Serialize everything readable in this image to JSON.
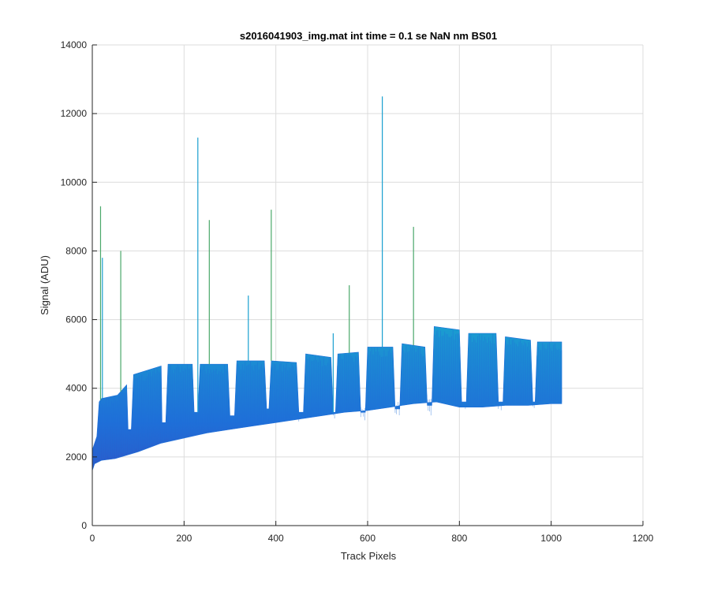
{
  "chart_data": {
    "type": "area",
    "title": "s2016041903_img.mat int time = 0.1 se  NaN nm BS01",
    "xlabel": "Track Pixels",
    "ylabel": "Signal (ADU)",
    "xlim": [
      0,
      1200
    ],
    "ylim": [
      0,
      14000
    ],
    "xticks": [
      0,
      200,
      400,
      600,
      800,
      1000,
      1200
    ],
    "yticks": [
      0,
      2000,
      4000,
      6000,
      8000,
      10000,
      12000,
      14000
    ],
    "grid": true,
    "colors": {
      "low": "#3d3bb5",
      "mid": "#1f6fd8",
      "high": "#1aa0d0",
      "spike": "#4aa86a",
      "axis": "#262626",
      "grid": "#dcdcdc"
    },
    "lower_envelope": {
      "x": [
        0,
        5,
        20,
        50,
        100,
        150,
        200,
        250,
        300,
        350,
        400,
        450,
        500,
        550,
        600,
        650,
        700,
        750,
        800,
        850,
        900,
        950,
        1000,
        1023
      ],
      "y": [
        1600,
        1800,
        1900,
        1950,
        2150,
        2400,
        2550,
        2700,
        2800,
        2900,
        3000,
        3100,
        3200,
        3300,
        3350,
        3450,
        3550,
        3600,
        3450,
        3450,
        3500,
        3500,
        3550,
        3550
      ]
    },
    "upper_envelope": {
      "x": [
        0,
        10,
        15,
        20,
        55,
        75,
        78,
        85,
        90,
        150,
        152,
        160,
        165,
        218,
        222,
        230,
        235,
        295,
        300,
        310,
        315,
        375,
        380,
        385,
        390,
        445,
        450,
        460,
        465,
        520,
        525,
        530,
        535,
        580,
        585,
        595,
        600,
        655,
        660,
        670,
        675,
        725,
        730,
        740,
        745,
        800,
        805,
        815,
        820,
        880,
        885,
        895,
        900,
        955,
        960,
        965,
        970,
        1023
      ],
      "y": [
        2200,
        2600,
        3600,
        3700,
        3800,
        4100,
        2800,
        2800,
        4400,
        4650,
        3000,
        3000,
        4700,
        4700,
        3300,
        3300,
        4700,
        4700,
        3200,
        3200,
        4800,
        4800,
        3400,
        3400,
        4800,
        4750,
        3300,
        3300,
        5000,
        4900,
        3300,
        3300,
        5000,
        5050,
        3300,
        3300,
        5200,
        5200,
        3400,
        3400,
        5300,
        5200,
        3500,
        3500,
        5800,
        5700,
        3600,
        3600,
        5600,
        5600,
        3600,
        3600,
        5500,
        5400,
        3600,
        3600,
        5350,
        5350
      ]
    },
    "spikes": {
      "x": [
        18,
        22,
        62,
        230,
        255,
        340,
        390,
        525,
        560,
        632,
        700
      ],
      "y": [
        9300,
        7800,
        8000,
        11300,
        8900,
        6700,
        9200,
        5600,
        7000,
        12500,
        8700
      ]
    }
  }
}
